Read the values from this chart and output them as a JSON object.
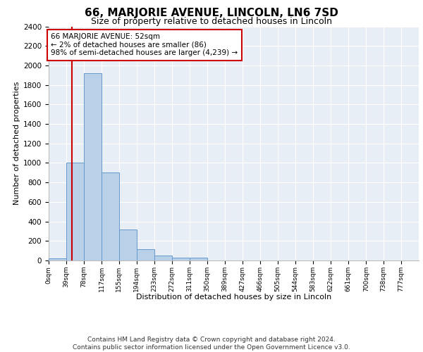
{
  "title": "66, MARJORIE AVENUE, LINCOLN, LN6 7SD",
  "subtitle": "Size of property relative to detached houses in Lincoln",
  "xlabel": "Distribution of detached houses by size in Lincoln",
  "ylabel": "Number of detached properties",
  "bar_edges": [
    0,
    39,
    78,
    117,
    155,
    194,
    233,
    272,
    311,
    350,
    389,
    427,
    466,
    505,
    544,
    583,
    622,
    661,
    700,
    738,
    777
  ],
  "bar_heights": [
    20,
    1000,
    1920,
    900,
    320,
    115,
    50,
    30,
    30,
    0,
    0,
    0,
    0,
    0,
    0,
    0,
    0,
    0,
    0,
    0
  ],
  "bar_color": "#b8d0e8",
  "bar_edge_color": "#6699cc",
  "tick_labels": [
    "0sqm",
    "39sqm",
    "78sqm",
    "117sqm",
    "155sqm",
    "194sqm",
    "233sqm",
    "272sqm",
    "311sqm",
    "350sqm",
    "389sqm",
    "427sqm",
    "466sqm",
    "505sqm",
    "544sqm",
    "583sqm",
    "622sqm",
    "661sqm",
    "700sqm",
    "738sqm",
    "777sqm"
  ],
  "ylim": [
    0,
    2400
  ],
  "yticks": [
    0,
    200,
    400,
    600,
    800,
    1000,
    1200,
    1400,
    1600,
    1800,
    2000,
    2200,
    2400
  ],
  "property_line_x": 52,
  "property_line_color": "#cc0000",
  "annotation_line1": "66 MARJORIE AVENUE: 52sqm",
  "annotation_line2": "← 2% of detached houses are smaller (86)",
  "annotation_line3": "98% of semi-detached houses are larger (4,239) →",
  "annotation_box_color": "#ffffff",
  "annotation_box_edge_color": "#cc0000",
  "background_color": "#e8eef5",
  "grid_color": "#ffffff",
  "footer_text": "Contains HM Land Registry data © Crown copyright and database right 2024.\nContains public sector information licensed under the Open Government Licence v3.0.",
  "title_fontsize": 11,
  "subtitle_fontsize": 9,
  "ylabel_fontsize": 8,
  "xlabel_fontsize": 8,
  "annotation_fontsize": 7.5,
  "tick_fontsize": 6.5,
  "ytick_fontsize": 7.5,
  "footer_fontsize": 6.5
}
